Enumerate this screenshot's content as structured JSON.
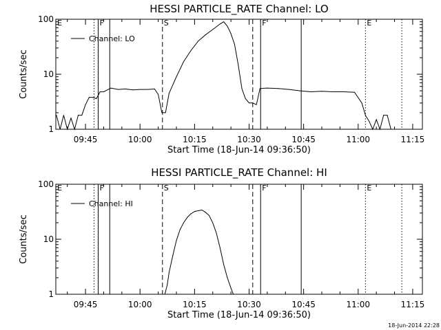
{
  "chart_data": [
    {
      "type": "line",
      "title": "HESSI PARTICLE_RATE Channel: LO",
      "xlabel": "Start Time (18-Jun-14 09:36:50)",
      "ylabel": "Counts/sec",
      "yscale": "log",
      "ylim": [
        1,
        100
      ],
      "xlim": [
        "09:36:50",
        "11:17:40"
      ],
      "x_tick_labels": [
        "09:45",
        "10:00",
        "10:15",
        "10:30",
        "10:45",
        "11:00",
        "11:15"
      ],
      "y_tick_labels": [
        "1",
        "10",
        "100"
      ],
      "legend": {
        "position": "top-left",
        "entries": [
          "Channel: LO"
        ]
      },
      "series": [
        {
          "name": "Channel: LO",
          "x": [
            "09:37:00",
            "09:38:00",
            "09:39:00",
            "09:40:00",
            "09:41:00",
            "09:42:00",
            "09:43:00",
            "09:44:00",
            "09:45:00",
            "09:46:00",
            "09:47:00",
            "09:48:00",
            "09:49:00",
            "09:50:00",
            "09:52:00",
            "09:54:00",
            "09:56:00",
            "09:58:00",
            "10:00:00",
            "10:02:00",
            "10:04:00",
            "10:05:00",
            "10:06:00",
            "10:07:00",
            "10:08:00",
            "10:10:00",
            "10:12:00",
            "10:14:00",
            "10:16:00",
            "10:18:00",
            "10:20:00",
            "10:22:00",
            "10:23:00",
            "10:24:00",
            "10:25:00",
            "10:26:00",
            "10:27:00",
            "10:28:00",
            "10:29:00",
            "10:30:00",
            "10:31:00",
            "10:32:00",
            "10:33:00",
            "10:35:00",
            "10:38:00",
            "10:41:00",
            "10:44:00",
            "10:47:00",
            "10:50:00",
            "10:53:00",
            "10:56:00",
            "10:59:00",
            "11:01:00",
            "11:02:00",
            "11:03:00",
            "11:04:00",
            "11:05:00",
            "11:06:00",
            "11:07:00",
            "11:08:00",
            "11:09:00"
          ],
          "values": [
            1.8,
            1.0,
            1.8,
            1.0,
            1.6,
            1.0,
            1.8,
            1.8,
            2.8,
            3.8,
            3.8,
            3.6,
            4.8,
            4.8,
            5.6,
            5.3,
            5.4,
            5.2,
            5.3,
            5.3,
            5.4,
            4.3,
            2.0,
            2.0,
            4.5,
            9.0,
            17,
            27,
            40,
            52,
            65,
            82,
            90,
            75,
            55,
            35,
            15,
            5.5,
            3.6,
            3.0,
            3.0,
            2.8,
            5.5,
            5.6,
            5.5,
            5.3,
            5.0,
            4.8,
            4.9,
            4.8,
            4.8,
            4.7,
            3.0,
            1.8,
            1.4,
            1.0,
            1.5,
            1.0,
            1.8,
            1.8,
            1.0
          ]
        }
      ],
      "markers": [
        {
          "label": "E",
          "time": "09:36:50",
          "style": "dotted"
        },
        {
          "label": "",
          "time": "09:47:20",
          "style": "dotted"
        },
        {
          "label": "F",
          "time": "09:48:30",
          "style": "solid"
        },
        {
          "label": "",
          "time": "09:51:40",
          "style": "solid"
        },
        {
          "label": "S",
          "time": "10:06:10",
          "style": "dashed"
        },
        {
          "label": "",
          "time": "10:31:00",
          "style": "dashed"
        },
        {
          "label": "F",
          "time": "10:33:10",
          "style": "solid"
        },
        {
          "label": "",
          "time": "10:44:20",
          "style": "solid"
        },
        {
          "label": "E",
          "time": "11:02:00",
          "style": "dotted"
        },
        {
          "label": "",
          "time": "11:12:00",
          "style": "dotted"
        }
      ]
    },
    {
      "type": "line",
      "title": "HESSI PARTICLE_RATE Channel: HI",
      "xlabel": "Start Time (18-Jun-14 09:36:50)",
      "ylabel": "Counts/sec",
      "yscale": "log",
      "ylim": [
        1,
        100
      ],
      "xlim": [
        "09:36:50",
        "11:17:40"
      ],
      "x_tick_labels": [
        "09:45",
        "10:00",
        "10:15",
        "10:30",
        "10:45",
        "11:00",
        "11:15"
      ],
      "y_tick_labels": [
        "1",
        "10",
        "100"
      ],
      "legend": {
        "position": "top-left",
        "entries": [
          "Channel: HI"
        ]
      },
      "series": [
        {
          "name": "Channel: HI",
          "x": [
            "10:06:50",
            "10:07:30",
            "10:08:00",
            "10:09:00",
            "10:10:00",
            "10:11:00",
            "10:12:00",
            "10:13:00",
            "10:14:00",
            "10:15:00",
            "10:16:00",
            "10:17:00",
            "10:18:00",
            "10:19:00",
            "10:20:00",
            "10:21:00",
            "10:22:00",
            "10:23:00",
            "10:24:00",
            "10:25:00",
            "10:25:40"
          ],
          "values": [
            1.0,
            1.5,
            2.5,
            5.0,
            9.5,
            15,
            20,
            25,
            29,
            32,
            33,
            34,
            31,
            27,
            20,
            13,
            7,
            3.5,
            2.0,
            1.3,
            1.0
          ]
        }
      ],
      "markers": [
        {
          "label": "E",
          "time": "09:36:50",
          "style": "dotted"
        },
        {
          "label": "",
          "time": "09:47:20",
          "style": "dotted"
        },
        {
          "label": "F",
          "time": "09:48:30",
          "style": "solid"
        },
        {
          "label": "",
          "time": "09:51:40",
          "style": "solid"
        },
        {
          "label": "S",
          "time": "10:06:10",
          "style": "dashed"
        },
        {
          "label": "",
          "time": "10:31:00",
          "style": "dashed"
        },
        {
          "label": "F",
          "time": "10:33:10",
          "style": "solid"
        },
        {
          "label": "",
          "time": "10:44:20",
          "style": "solid"
        },
        {
          "label": "E",
          "time": "11:02:00",
          "style": "dotted"
        },
        {
          "label": "",
          "time": "11:12:00",
          "style": "dotted"
        }
      ]
    }
  ],
  "footer": {
    "timestamp": "18-Jun-2014 22:28"
  }
}
